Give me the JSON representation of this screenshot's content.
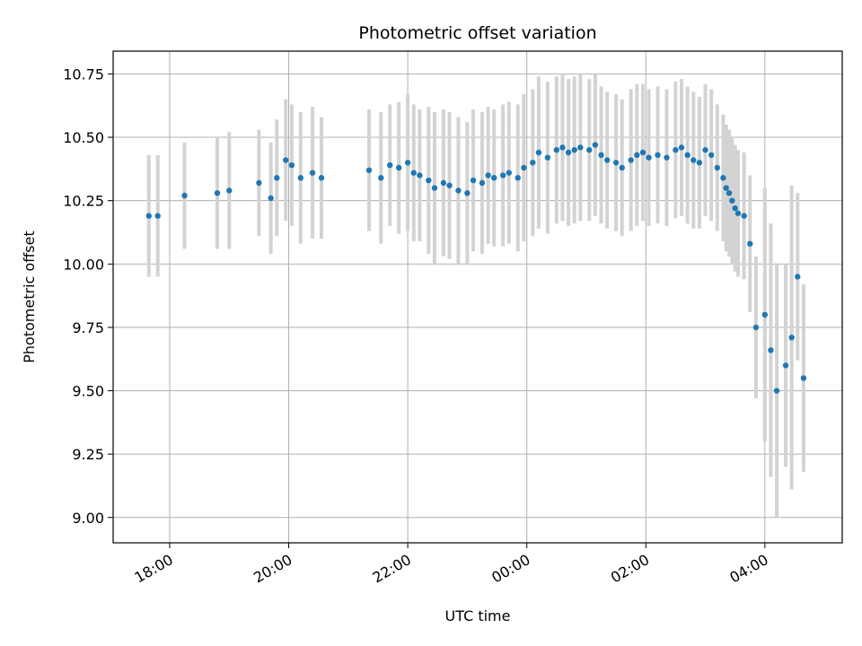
{
  "chart_data": {
    "type": "scatter",
    "title": "Photometric offset variation",
    "xlabel": "UTC time",
    "ylabel": "Photometric offset",
    "x_unit": "hours since 00:00 UTC",
    "xlim": [
      -6.95,
      5.3
    ],
    "ylim": [
      8.9,
      10.84
    ],
    "grid": true,
    "x_ticks": [
      {
        "value": -6,
        "label": "18:00"
      },
      {
        "value": -4,
        "label": "20:00"
      },
      {
        "value": -2,
        "label": "22:00"
      },
      {
        "value": 0,
        "label": "00:00"
      },
      {
        "value": 2,
        "label": "02:00"
      },
      {
        "value": 4,
        "label": "04:00"
      }
    ],
    "y_ticks": [
      {
        "value": 9.0,
        "label": "9.00"
      },
      {
        "value": 9.25,
        "label": "9.25"
      },
      {
        "value": 9.5,
        "label": "9.50"
      },
      {
        "value": 9.75,
        "label": "9.75"
      },
      {
        "value": 10.0,
        "label": "10.00"
      },
      {
        "value": 10.25,
        "label": "10.25"
      },
      {
        "value": 10.5,
        "label": "10.50"
      },
      {
        "value": 10.75,
        "label": "10.75"
      }
    ],
    "colors": {
      "points": "#1f77b4",
      "errorbars": "#d3d3d3",
      "grid": "#b0b0b0"
    },
    "series": [
      {
        "name": "offset",
        "x": [
          -6.35,
          -6.2,
          -5.75,
          -5.2,
          -5.0,
          -4.5,
          -4.3,
          -4.2,
          -4.05,
          -3.95,
          -3.8,
          -3.6,
          -3.45,
          -2.65,
          -2.45,
          -2.3,
          -2.15,
          -2.0,
          -1.9,
          -1.8,
          -1.65,
          -1.55,
          -1.4,
          -1.3,
          -1.15,
          -1.0,
          -0.9,
          -0.75,
          -0.65,
          -0.55,
          -0.4,
          -0.3,
          -0.15,
          -0.05,
          0.1,
          0.2,
          0.35,
          0.5,
          0.6,
          0.7,
          0.8,
          0.9,
          1.05,
          1.15,
          1.25,
          1.35,
          1.5,
          1.6,
          1.75,
          1.85,
          1.95,
          2.05,
          2.2,
          2.35,
          2.5,
          2.6,
          2.7,
          2.8,
          2.9,
          3.0,
          3.1,
          3.2,
          3.3,
          3.35,
          3.4,
          3.45,
          3.5,
          3.55,
          3.65,
          3.75,
          3.85,
          4.0,
          4.1,
          4.2,
          4.35,
          4.45,
          4.55,
          4.65
        ],
        "y": [
          10.19,
          10.19,
          10.27,
          10.28,
          10.29,
          10.32,
          10.26,
          10.34,
          10.41,
          10.39,
          10.34,
          10.36,
          10.34,
          10.37,
          10.34,
          10.39,
          10.38,
          10.4,
          10.36,
          10.35,
          10.33,
          10.3,
          10.32,
          10.31,
          10.29,
          10.28,
          10.33,
          10.32,
          10.35,
          10.34,
          10.35,
          10.36,
          10.34,
          10.38,
          10.4,
          10.44,
          10.42,
          10.45,
          10.46,
          10.44,
          10.45,
          10.46,
          10.45,
          10.47,
          10.43,
          10.41,
          10.4,
          10.38,
          10.41,
          10.43,
          10.44,
          10.42,
          10.43,
          10.42,
          10.45,
          10.46,
          10.43,
          10.41,
          10.4,
          10.45,
          10.43,
          10.38,
          10.34,
          10.3,
          10.28,
          10.25,
          10.22,
          10.2,
          10.19,
          10.08,
          9.75,
          9.8,
          9.66,
          9.5,
          9.6,
          9.71,
          9.95,
          9.55
        ],
        "yerr": [
          0.24,
          0.24,
          0.21,
          0.22,
          0.23,
          0.21,
          0.22,
          0.23,
          0.24,
          0.24,
          0.26,
          0.26,
          0.24,
          0.24,
          0.26,
          0.24,
          0.26,
          0.27,
          0.27,
          0.26,
          0.29,
          0.3,
          0.29,
          0.29,
          0.29,
          0.28,
          0.28,
          0.28,
          0.27,
          0.27,
          0.28,
          0.28,
          0.29,
          0.29,
          0.29,
          0.3,
          0.3,
          0.29,
          0.29,
          0.29,
          0.29,
          0.29,
          0.28,
          0.28,
          0.27,
          0.27,
          0.27,
          0.27,
          0.28,
          0.28,
          0.27,
          0.27,
          0.27,
          0.27,
          0.27,
          0.27,
          0.27,
          0.27,
          0.26,
          0.26,
          0.26,
          0.25,
          0.25,
          0.25,
          0.25,
          0.25,
          0.25,
          0.25,
          0.25,
          0.27,
          0.28,
          0.5,
          0.5,
          0.5,
          0.4,
          0.6,
          0.33,
          0.37
        ]
      }
    ]
  }
}
